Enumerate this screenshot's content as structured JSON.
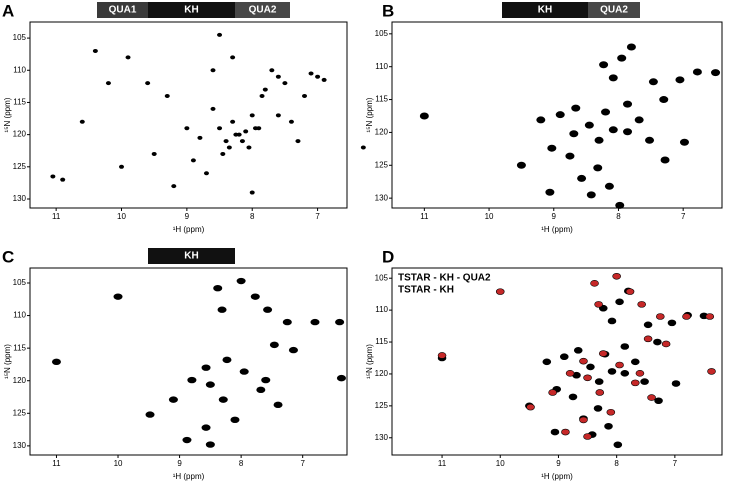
{
  "chart_data": [
    {
      "type": "scatter",
      "panel_label": "A",
      "xlabel": "¹H (ppm)",
      "ylabel": "¹⁵N (ppm)",
      "domains": [
        {
          "label": "QUA1",
          "color": "#3a3a3a"
        },
        {
          "label": "KH",
          "color": "#111111"
        },
        {
          "label": "QUA2",
          "color": "#474747"
        }
      ],
      "color": "#000000",
      "x": [
        11.05,
        10.9,
        10.6,
        10.2,
        9.9,
        9.5,
        9.3,
        9.0,
        8.8,
        8.6,
        8.5,
        8.4,
        8.3,
        8.2,
        8.1,
        8.0,
        7.9,
        7.8,
        7.7,
        7.6,
        7.5,
        7.4,
        7.3,
        7.2,
        7.1,
        7.0,
        6.9,
        8.45,
        8.35,
        8.25,
        8.15,
        8.05,
        7.95,
        8.7,
        8.9,
        9.6,
        10.4,
        6.3,
        8.6,
        7.85,
        8.3,
        8.0,
        9.2,
        10.0,
        8.5,
        7.6
      ],
      "values": [
        126.5,
        127,
        118,
        112,
        108,
        123,
        114,
        119,
        120.5,
        110,
        119,
        121,
        118,
        120,
        119.5,
        117,
        119,
        113,
        110,
        111,
        112,
        118,
        121,
        114,
        110.5,
        111,
        111.5,
        123,
        122,
        120,
        121,
        122,
        119,
        126,
        124,
        112,
        107,
        122,
        116,
        114,
        108,
        129,
        128,
        125,
        104.5,
        117
      ],
      "xlim": [
        11.4,
        6.55
      ],
      "xticks": [
        11,
        10,
        9,
        8,
        7
      ],
      "ylim": [
        131.4,
        102.5
      ],
      "yticks": [
        105,
        110,
        115,
        120,
        125,
        130
      ]
    },
    {
      "type": "scatter",
      "panel_label": "B",
      "xlabel": "¹H (ppm)",
      "ylabel": "¹⁵N (ppm)",
      "domains": [
        {
          "label": "KH",
          "color": "#111111"
        },
        {
          "label": "QUA2",
          "color": "#474747"
        }
      ],
      "color": "#000000",
      "x": [
        11.0,
        7.8,
        7.95,
        8.23,
        8.08,
        7.46,
        7.05,
        6.78,
        6.5,
        7.3,
        9.2,
        8.9,
        8.66,
        8.45,
        8.3,
        8.08,
        7.86,
        7.68,
        7.52,
        7.28,
        6.98,
        9.5,
        9.03,
        8.75,
        8.57,
        8.32,
        8.14,
        9.06,
        7.98,
        8.42,
        7.86,
        8.69,
        8.2
      ],
      "values": [
        117.5,
        107,
        108.7,
        109.7,
        111.7,
        112.3,
        112,
        110.8,
        110.9,
        115,
        118.1,
        117.3,
        116.3,
        118.9,
        121.2,
        119.6,
        119.9,
        118.1,
        121.2,
        124.2,
        121.5,
        125,
        122.4,
        123.6,
        127,
        125.4,
        128.2,
        129.1,
        131.1,
        129.5,
        115.7,
        120.2,
        116.9
      ],
      "xlim": [
        11.5,
        6.4
      ],
      "xticks": [
        11,
        10,
        9,
        8,
        7
      ],
      "ylim": [
        131.5,
        103.2
      ],
      "yticks": [
        105,
        110,
        115,
        120,
        125,
        130
      ]
    },
    {
      "type": "scatter",
      "panel_label": "C",
      "xlabel": "¹H (ppm)",
      "ylabel": "¹⁵N (ppm)",
      "domains": [
        {
          "label": "KH",
          "color": "#111111"
        }
      ],
      "color": "#000000",
      "x": [
        11.0,
        10.0,
        8.0,
        8.38,
        7.77,
        8.31,
        7.57,
        7.25,
        6.8,
        6.4,
        6.37,
        7.15,
        7.46,
        9.48,
        9.1,
        8.8,
        8.57,
        8.23,
        7.95,
        7.68,
        7.4,
        8.88,
        8.57,
        8.5,
        8.29,
        8.1,
        7.6,
        8.5
      ],
      "values": [
        117.1,
        107.1,
        104.7,
        105.8,
        107.1,
        109.1,
        109.1,
        111,
        111,
        111,
        119.6,
        115.3,
        114.5,
        125.2,
        122.9,
        119.9,
        118,
        116.8,
        118.6,
        121.4,
        123.7,
        129.1,
        127.2,
        129.8,
        122.9,
        126,
        119.9,
        120.6
      ],
      "xlim": [
        11.43,
        6.28
      ],
      "xticks": [
        11,
        10,
        9,
        8,
        7
      ],
      "ylim": [
        131.4,
        102.7
      ],
      "yticks": [
        105,
        110,
        115,
        120,
        125,
        130
      ]
    },
    {
      "type": "scatter",
      "panel_label": "D",
      "xlabel": "¹H (ppm)",
      "ylabel": "¹⁵N (ppm)",
      "legend": "top-left",
      "series": [
        {
          "name": "TSTAR - KH - QUA2",
          "color": "#000000",
          "x": [
            11.0,
            7.8,
            7.95,
            8.23,
            8.08,
            7.46,
            7.05,
            6.78,
            6.5,
            7.3,
            9.2,
            8.9,
            8.66,
            8.45,
            8.3,
            8.08,
            7.86,
            7.68,
            7.52,
            7.28,
            6.98,
            9.5,
            9.03,
            8.75,
            8.57,
            8.32,
            8.14,
            9.06,
            7.98,
            8.42,
            7.86,
            8.69,
            8.2
          ],
          "values": [
            117.5,
            107,
            108.7,
            109.7,
            111.7,
            112.3,
            112,
            110.8,
            110.9,
            115,
            118.1,
            117.3,
            116.3,
            118.9,
            121.2,
            119.6,
            119.9,
            118.1,
            121.2,
            124.2,
            121.5,
            125,
            122.4,
            123.6,
            127,
            125.4,
            128.2,
            129.1,
            131.1,
            129.5,
            115.7,
            120.2,
            116.9
          ]
        },
        {
          "name": "TSTAR - KH",
          "color": "#c62828",
          "x": [
            11.0,
            10.0,
            8.0,
            8.38,
            7.77,
            8.31,
            7.57,
            7.25,
            6.8,
            6.4,
            6.37,
            7.15,
            7.46,
            9.48,
            9.1,
            8.8,
            8.57,
            8.23,
            7.95,
            7.68,
            7.4,
            8.88,
            8.57,
            8.5,
            8.29,
            8.1,
            7.6,
            8.5
          ],
          "values": [
            117.1,
            107.1,
            104.7,
            105.8,
            107.1,
            109.1,
            109.1,
            111,
            111,
            111,
            119.6,
            115.3,
            114.5,
            125.2,
            122.9,
            119.9,
            118,
            116.8,
            118.6,
            121.4,
            123.7,
            129.1,
            127.2,
            129.8,
            122.9,
            126,
            119.9,
            120.6
          ]
        }
      ],
      "xlim": [
        11.86,
        6.19
      ],
      "xticks": [
        11,
        10,
        9,
        8,
        7
      ],
      "ylim": [
        132.7,
        103.4
      ],
      "yticks": [
        105,
        110,
        115,
        120,
        125,
        130
      ]
    }
  ]
}
